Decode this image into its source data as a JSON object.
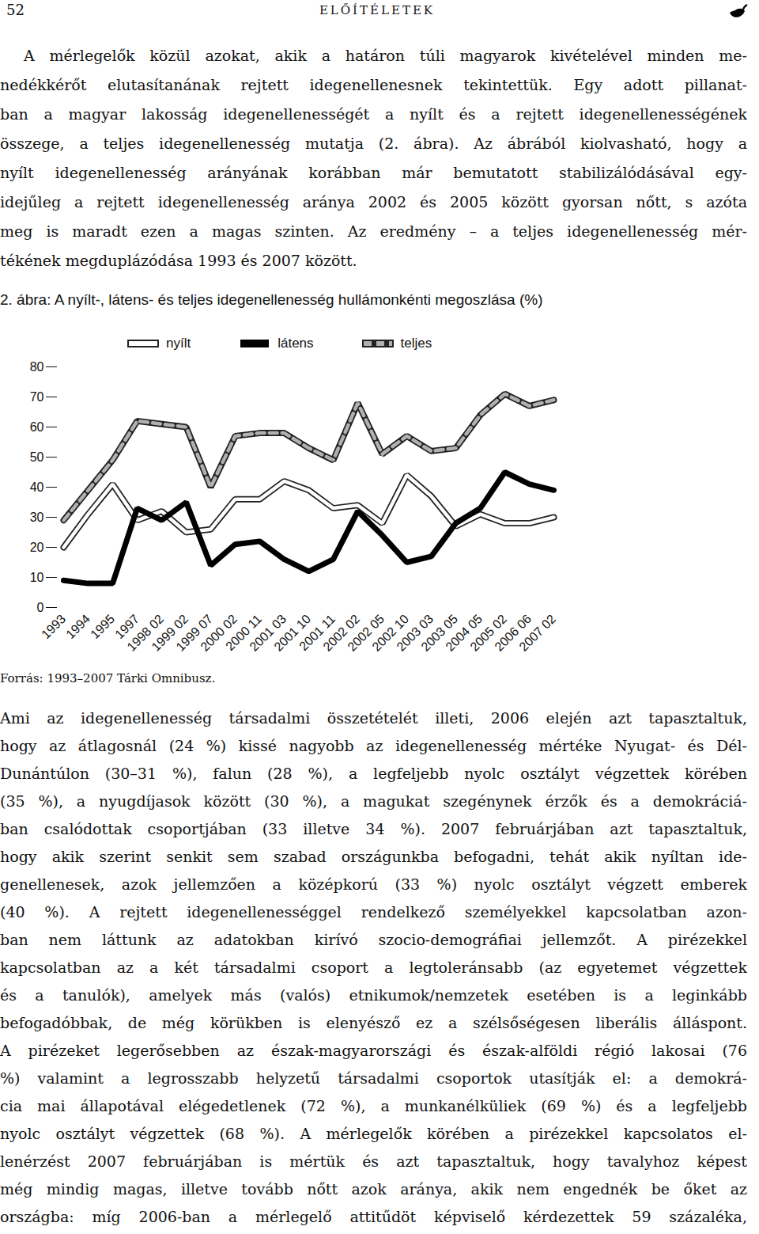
{
  "header": {
    "page_number": "52",
    "running_title": "ELŐÍTÉLETEK"
  },
  "paragraphs_before": [
    [
      "A mérlegelők közül azokat, akik a határon túli magyarok kivételével minden me-",
      "nedékkérőt elutasítanának rejtett idegenellenesnek tekintettük. Egy adott pillanat-",
      "ban a magyar lakosság idegenellenességét a nyílt és a rejtett idegenellenességének",
      "összege, a teljes idegenellenesség mutatja (2. ábra). Az ábrából kiolvasható, hogy a",
      "nyílt idegenellenesség arányának korábban már bemutatott stabilizálódásával egy-",
      "idejűleg a rejtett idegenellenesség aránya 2002 és 2005 között gyorsan nőtt, s azóta",
      "meg is maradt ezen a magas szinten. Az eredmény – a teljes idegenellenesség mér-",
      "tékének megduplázódása 1993 és 2007 között."
    ]
  ],
  "chart_data": {
    "type": "line",
    "title": "2. ábra: A nyílt-, látens- és teljes idegenellenesség hullámonkénti megoszlása (%)",
    "categories": [
      "1993",
      "1994",
      "1995",
      "1997",
      "1998 02",
      "1999 02",
      "1999 07",
      "2000 02",
      "2000 11",
      "2001 03",
      "2001 10",
      "2001 11",
      "2002 02",
      "2002 05",
      "2002 10",
      "2003 03",
      "2003 05",
      "2004 05",
      "2005 02",
      "2006 06",
      "2007 02"
    ],
    "series": [
      {
        "name": "nyílt",
        "color": "#ffffff",
        "line_style": "solid",
        "values": [
          20,
          31,
          41,
          29,
          32,
          25,
          26,
          36,
          36,
          42,
          39,
          33,
          34,
          28,
          44,
          37,
          27,
          31,
          28,
          28,
          30
        ]
      },
      {
        "name": "látens",
        "color": "#000000",
        "line_style": "solid",
        "values": [
          9,
          8,
          8,
          33,
          29,
          35,
          14,
          21,
          22,
          16,
          12,
          16,
          32,
          24,
          15,
          17,
          28,
          33,
          45,
          41,
          39
        ]
      },
      {
        "name": "teljes",
        "color": "#b0b0b0",
        "line_style": "dashed",
        "values": [
          29,
          39,
          49,
          62,
          61,
          60,
          40,
          57,
          58,
          58,
          53,
          49,
          68,
          51,
          57,
          52,
          53,
          64,
          71,
          67,
          69
        ]
      }
    ],
    "ylim": [
      0,
      80
    ],
    "yticks": [
      0,
      10,
      20,
      30,
      40,
      50,
      60,
      70,
      80
    ],
    "legend": "top"
  },
  "source": "Forrás: 1993–2007 Tárki Omnibusz.",
  "paragraphs_after": [
    [
      "Ami az idegenellenesség társadalmi összetételét illeti, 2006 elején azt tapasztaltuk,",
      "hogy az átlagosnál (24 %) kissé nagyobb az idegenellenesség mértéke Nyugat- és Dél-",
      "Dunántúlon (30–31 %), falun (28 %), a legfeljebb nyolc osztályt végzettek körében",
      "(35 %), a nyugdíjasok között (30 %), a magukat szegénynek érzők és a demokráciá-",
      "ban csalódottak csoportjában (33 illetve 34 %). 2007 februárjában azt tapasztaltuk,",
      "hogy akik szerint senkit sem szabad országunkba befogadni, tehát akik nyíltan ide-",
      "genellenesek, azok jellemzően a középkorú (33 %) nyolc osztályt végzett emberek",
      "(40 %). A rejtett idegenellenességgel rendelkező személyekkel kapcsolatban azon-",
      "ban nem láttunk az adatokban kirívó szocio-demográfiai jellemzőt. A pirézekkel",
      "kapcsolatban az a két társadalmi csoport a legtoleránsabb (az egyetemet végzettek",
      "és a tanulók), amelyek más (valós) etnikumok/nemzetek esetében is a leginkább",
      "befogadóbbak, de még körükben is elenyésző ez a szélsőségesen liberális álláspont.",
      "A pirézeket legerősebben az észak-magyarországi és észak-alföldi régió lakosai (76",
      "%) valamint a legrosszabb helyzetű társadalmi csoportok utasítják el: a demokrá-",
      "cia mai állapotával elégedetlenek (72 %), a munkanélküliek (69 %) és a legfeljebb",
      "nyolc osztályt végzettek (68 %). A mérlegelők körében a pirézekkel kapcsolatos el-",
      "lenérzést 2007 februárjában is mértük és azt tapasztaltuk, hogy tavalyhoz képest",
      "még mindig magas, illetve tovább nőtt azok aránya, akik nem engednék be őket az",
      "országba: míg 2006-ban a mérlegelő attitűdöt képviselő kérdezettek 59 százaléka,"
    ]
  ]
}
